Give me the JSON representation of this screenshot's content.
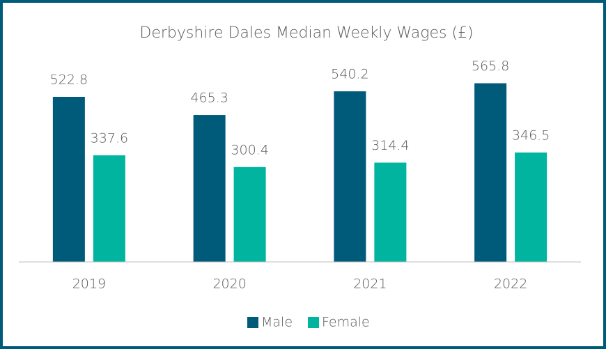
{
  "chart_data": {
    "type": "bar",
    "title": "Derbyshire Dales Median Weekly Wages (£)",
    "categories": [
      "2019",
      "2020",
      "2021",
      "2022"
    ],
    "series": [
      {
        "name": "Male",
        "color": "#005b7a",
        "values": [
          522.8,
          465.3,
          540.2,
          565.8
        ]
      },
      {
        "name": "Female",
        "color": "#00b4a0",
        "values": [
          337.6,
          300.4,
          314.4,
          346.5
        ]
      }
    ],
    "ylim": [
      0,
      600
    ],
    "legend": "bottom"
  }
}
